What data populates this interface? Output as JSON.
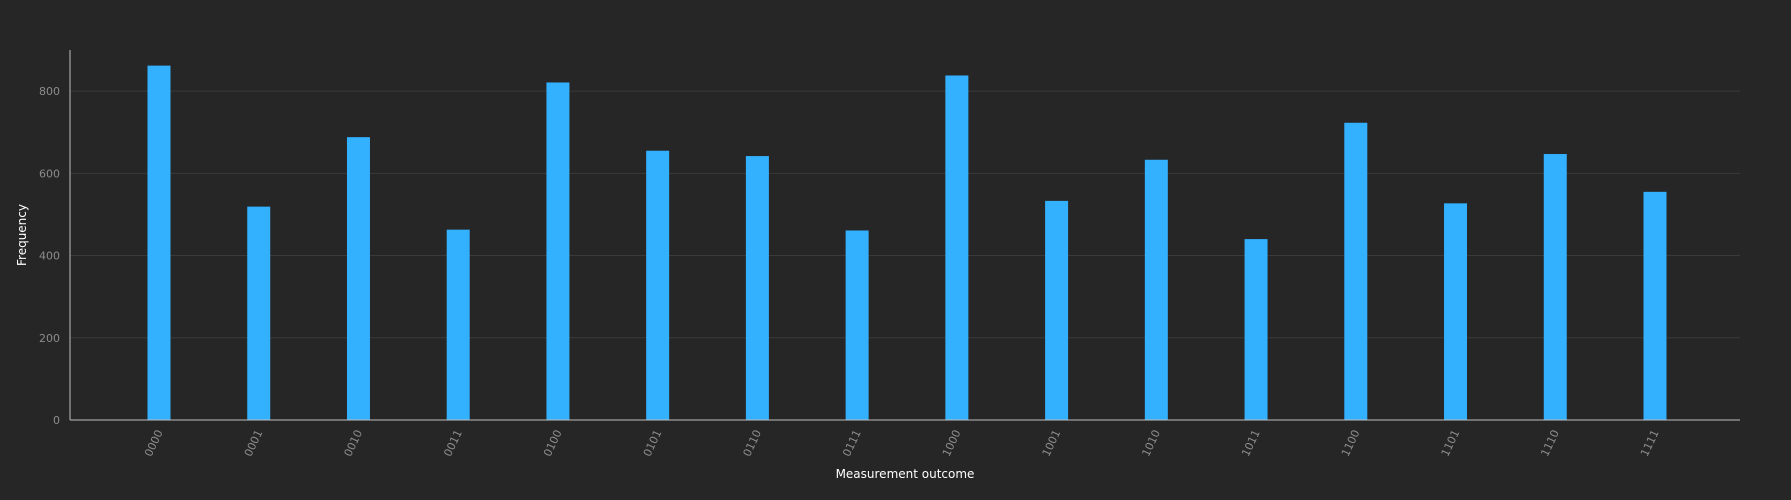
{
  "chart_data": {
    "type": "bar",
    "categories": [
      "0000",
      "0001",
      "0010",
      "0011",
      "0100",
      "0101",
      "0110",
      "0111",
      "1000",
      "1001",
      "1010",
      "1011",
      "1100",
      "1101",
      "1110",
      "1111"
    ],
    "values": [
      862,
      519,
      688,
      463,
      821,
      655,
      642,
      461,
      838,
      533,
      633,
      440,
      723,
      527,
      647,
      555
    ],
    "title": "",
    "xlabel": "Measurement outcome",
    "ylabel": "Frequency",
    "ylim": [
      0,
      900
    ],
    "yticks": [
      0,
      200,
      400,
      600,
      800
    ],
    "grid": true,
    "legend": "none",
    "bar_color": "#33b1ff",
    "background_color": "#262626",
    "tick_label_rotation": "-65deg"
  }
}
